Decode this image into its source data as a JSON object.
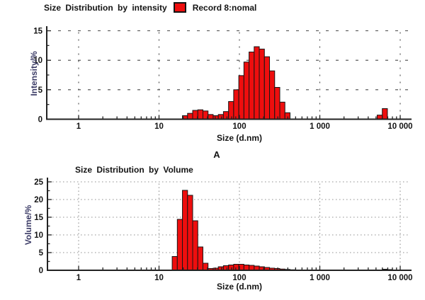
{
  "page": {
    "background": "#ffffff"
  },
  "chart_data": [
    {
      "type": "bar",
      "panel": "top",
      "title": "Size Distribution by intensity",
      "legend": "Record 8:nomal",
      "xlabel": "Size (d.nm)",
      "ylabel": "Intensity/%",
      "footnote": "A",
      "x_scale": "log",
      "xlim": [
        0.4,
        13000
      ],
      "ylim": [
        0,
        15
      ],
      "yticks": [
        0,
        5,
        10,
        15
      ],
      "y_minor_step": 2.5,
      "xticks": [
        1,
        10,
        100,
        1000,
        10000
      ],
      "xtick_labels": [
        "1",
        "10",
        "100",
        "1 000",
        "10 000"
      ],
      "grid": true,
      "grid_color": "#4a4a4a",
      "bar_color": "#ee0e0e",
      "bar_border": "#161616",
      "bins_per_decade": 15.7,
      "points": [
        [
          21.04,
          0.6
        ],
        [
          24.36,
          1.0
        ],
        [
          28.21,
          1.5
        ],
        [
          32.67,
          1.6
        ],
        [
          37.84,
          1.4
        ],
        [
          43.82,
          0.8
        ],
        [
          50.75,
          0.6
        ],
        [
          58.77,
          0.8
        ],
        [
          68.06,
          1.3
        ],
        [
          78.82,
          3.0
        ],
        [
          91.28,
          5.0
        ],
        [
          105.7,
          7.4
        ],
        [
          122.4,
          9.7
        ],
        [
          141.8,
          11.4
        ],
        [
          164.2,
          12.3
        ],
        [
          190.1,
          11.9
        ],
        [
          220.2,
          10.6
        ],
        [
          255.0,
          8.2
        ],
        [
          295.3,
          5.4
        ],
        [
          342.0,
          2.9
        ],
        [
          396.1,
          1.1
        ],
        [
          5560,
          0.7
        ],
        [
          6440,
          1.8
        ]
      ]
    },
    {
      "type": "bar",
      "panel": "bottom",
      "title": "Size Distribution by Volume",
      "legend": null,
      "xlabel": "Size (d.nm)",
      "ylabel": "Volume/%",
      "x_scale": "log",
      "xlim": [
        0.4,
        13000
      ],
      "ylim": [
        0,
        25
      ],
      "yticks": [
        0,
        5,
        10,
        15,
        20,
        25
      ],
      "y_minor_step": 2.5,
      "xticks": [
        1,
        10,
        100,
        1000,
        10000
      ],
      "xtick_labels": [
        "1",
        "10",
        "100",
        "1 000",
        "10 000"
      ],
      "grid": true,
      "grid_color": "#8f8f8f",
      "bar_color": "#ee0e0e",
      "bar_border": "#161616",
      "bins_per_decade": 15.7,
      "points": [
        [
          15.69,
          3.9
        ],
        [
          18.17,
          14.4
        ],
        [
          21.04,
          22.6
        ],
        [
          24.36,
          21.2
        ],
        [
          28.21,
          14.0
        ],
        [
          32.67,
          6.6
        ],
        [
          37.84,
          2.0
        ],
        [
          43.82,
          0.5
        ],
        [
          50.75,
          0.6
        ],
        [
          58.77,
          1.0
        ],
        [
          68.06,
          1.3
        ],
        [
          78.82,
          1.5
        ],
        [
          91.28,
          1.7
        ],
        [
          105.7,
          1.7
        ],
        [
          122.4,
          1.5
        ],
        [
          141.8,
          1.4
        ],
        [
          164.2,
          1.2
        ],
        [
          190.1,
          1.0
        ],
        [
          220.2,
          0.8
        ],
        [
          255.0,
          0.6
        ],
        [
          295.3,
          0.5
        ],
        [
          342.0,
          0.35
        ],
        [
          396.1,
          0.25
        ],
        [
          458.7,
          0.15
        ],
        [
          6440,
          0.3
        ],
        [
          7460,
          0.2
        ]
      ]
    }
  ]
}
